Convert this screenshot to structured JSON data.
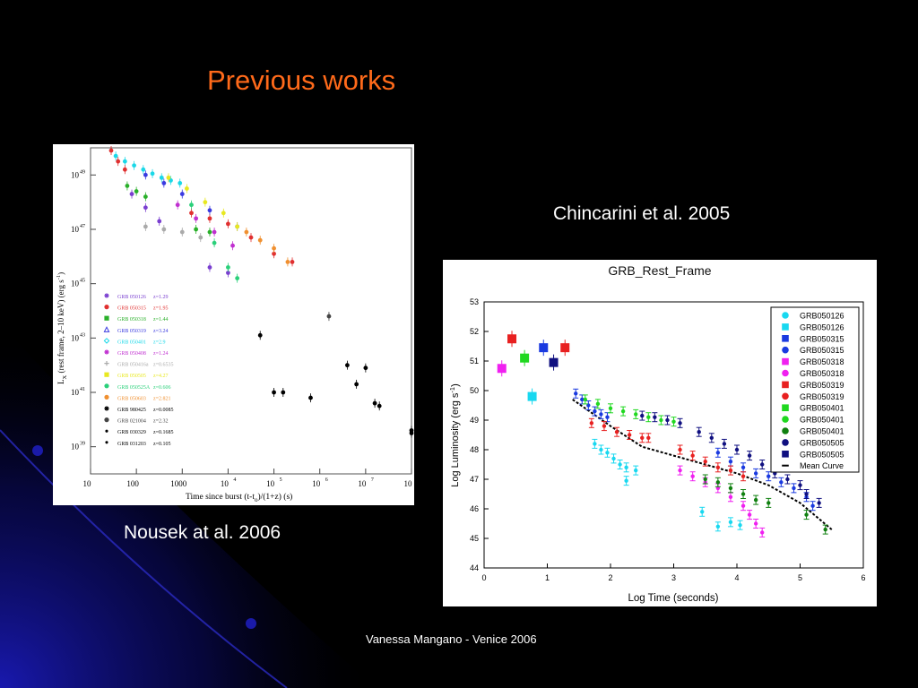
{
  "slide": {
    "title": "Previous works",
    "caption_right": "Chincarini et al. 2005",
    "caption_left": "Nousek at al. 2006",
    "footer": "Vanessa Mangano - Venice 2006"
  },
  "colors": {
    "background": "#000000",
    "title": "#ff6a1a",
    "swoosh": "#1a1aa8"
  },
  "chart_data": [
    {
      "type": "scatter",
      "scale": "log-log",
      "xlabel_parts": {
        "main": "Time since burst (t-t",
        "sub": "o",
        "rest": ")/(1+z) (s)"
      },
      "ylabel_parts": {
        "main": "L",
        "sub": "X",
        "rest": " (rest frame, 2–10 keV) (erg s",
        "sup": "-1",
        "end": ")"
      },
      "x_ticks": [
        "10",
        "100",
        "1000",
        "10",
        "10",
        "10",
        "10",
        "10"
      ],
      "x_tick_exponents": [
        "",
        "",
        "",
        "4",
        "5",
        "6",
        "7",
        "8"
      ],
      "x_log_range": [
        1,
        8
      ],
      "y_ticks": [
        "10",
        "10",
        "10",
        "10",
        "10",
        "10"
      ],
      "y_tick_exponents": [
        "39",
        "41",
        "43",
        "45",
        "47",
        "49"
      ],
      "y_log_range": [
        38,
        50
      ],
      "legend": [
        {
          "label": "GRB 050126",
          "z": "z=1.29",
          "color": "#7a3fd0",
          "marker": "star"
        },
        {
          "label": "GRB 050315",
          "z": "z=1.95",
          "color": "#e03030",
          "marker": "circle"
        },
        {
          "label": "GRB 050318",
          "z": "z=1.44",
          "color": "#2ab02a",
          "marker": "square"
        },
        {
          "label": "GRB 050319",
          "z": "z=3.24",
          "color": "#3a3ae0",
          "marker": "triangle"
        },
        {
          "label": "GRB 050401",
          "z": "z=2.9",
          "color": "#1ad8e8",
          "marker": "diamond"
        },
        {
          "label": "GRB 050408",
          "z": "z=1.24",
          "color": "#c030d0",
          "marker": "star"
        },
        {
          "label": "GRB 050416a",
          "z": "z=0.6535",
          "color": "#aaaaaa",
          "marker": "plus"
        },
        {
          "label": "GRB 050505",
          "z": "z=4.27",
          "color": "#e8e820",
          "marker": "square"
        },
        {
          "label": "GRB 050525A",
          "z": "z=0.606",
          "color": "#2ad07a",
          "marker": "circle"
        },
        {
          "label": "GRB 050603",
          "z": "z=2.821",
          "color": "#f09030",
          "marker": "circle"
        },
        {
          "label": "GRB 980425",
          "z": "z=0.0085",
          "color": "#000000",
          "marker": "star"
        },
        {
          "label": "GRB 021004",
          "z": "z=2.32",
          "color": "#444444",
          "marker": "circle"
        },
        {
          "label": "GRB 030329",
          "z": "z=0.1685",
          "color": "#000000",
          "marker": "dot"
        },
        {
          "label": "GRB 031203",
          "z": "z=0.105",
          "color": "#000000",
          "marker": "dot"
        }
      ],
      "series": [
        {
          "name": "GRB 050401",
          "color": "#1ad8e8",
          "points": [
            [
              1.55,
              49.7
            ],
            [
              1.75,
              49.5
            ],
            [
              1.95,
              49.35
            ],
            [
              2.15,
              49.2
            ],
            [
              2.35,
              49.05
            ],
            [
              2.55,
              48.9
            ],
            [
              2.75,
              48.8
            ],
            [
              2.95,
              48.7
            ]
          ]
        },
        {
          "name": "GRB 050315",
          "color": "#e03030",
          "points": [
            [
              1.45,
              49.9
            ],
            [
              1.6,
              49.5
            ],
            [
              1.75,
              49.2
            ],
            [
              3.2,
              47.6
            ],
            [
              3.6,
              47.4
            ],
            [
              4.0,
              47.2
            ],
            [
              4.5,
              46.7
            ],
            [
              5.0,
              46.1
            ],
            [
              5.4,
              45.8
            ]
          ]
        },
        {
          "name": "GRB 050318",
          "color": "#2ab02a",
          "points": [
            [
              1.8,
              48.6
            ],
            [
              2.0,
              48.4
            ],
            [
              2.2,
              48.2
            ],
            [
              3.3,
              47.0
            ],
            [
              3.6,
              46.9
            ]
          ]
        },
        {
          "name": "GRB 050126",
          "color": "#7a3fd0",
          "points": [
            [
              1.9,
              48.3
            ],
            [
              2.2,
              47.8
            ],
            [
              2.5,
              47.3
            ],
            [
              3.6,
              45.6
            ],
            [
              4.0,
              45.4
            ]
          ]
        },
        {
          "name": "GRB 050319",
          "color": "#3a3ae0",
          "points": [
            [
              2.2,
              49.0
            ],
            [
              2.6,
              48.7
            ],
            [
              3.0,
              48.3
            ],
            [
              3.6,
              47.7
            ],
            [
              4.2,
              47.1
            ]
          ]
        },
        {
          "name": "GRB 050505",
          "color": "#e8e820",
          "points": [
            [
              2.7,
              48.9
            ],
            [
              3.1,
              48.5
            ],
            [
              3.5,
              48.0
            ],
            [
              3.9,
              47.6
            ],
            [
              4.2,
              47.1
            ]
          ]
        },
        {
          "name": "GRB 050603",
          "color": "#f09030",
          "points": [
            [
              4.4,
              46.9
            ],
            [
              4.7,
              46.6
            ],
            [
              5.0,
              46.3
            ],
            [
              5.3,
              45.8
            ]
          ]
        },
        {
          "name": "GRB 050408",
          "color": "#c030d0",
          "points": [
            [
              2.9,
              47.9
            ],
            [
              3.3,
              47.4
            ],
            [
              3.7,
              46.9
            ],
            [
              4.1,
              46.4
            ]
          ]
        },
        {
          "name": "GRB 050416a",
          "color": "#aaaaaa",
          "points": [
            [
              2.2,
              47.1
            ],
            [
              2.6,
              47.0
            ],
            [
              3.0,
              46.9
            ],
            [
              3.4,
              46.7
            ]
          ]
        },
        {
          "name": "GRB 050525A",
          "color": "#2ad07a",
          "points": [
            [
              3.2,
              47.9
            ],
            [
              3.7,
              46.5
            ],
            [
              4.0,
              45.6
            ],
            [
              4.2,
              45.2
            ]
          ]
        },
        {
          "name": "GRB 980425",
          "color": "#000000",
          "points": [
            [
              4.7,
              43.1
            ],
            [
              5.0,
              41.0
            ],
            [
              5.2,
              41.0
            ],
            [
              5.8,
              40.8
            ],
            [
              7.3,
              40.5
            ],
            [
              8.0,
              39.6
            ]
          ]
        },
        {
          "name": "GRB 021004",
          "color": "#444444",
          "points": [
            [
              6.2,
              43.8
            ]
          ]
        },
        {
          "name": "GRB 030329",
          "color": "#000000",
          "points": [
            [
              6.6,
              42.0
            ],
            [
              6.8,
              41.3
            ],
            [
              7.0,
              41.9
            ],
            [
              7.2,
              40.6
            ],
            [
              8.0,
              39.5
            ]
          ]
        }
      ]
    },
    {
      "type": "scatter",
      "title": "GRB_Rest_Frame",
      "xlabel": "Log Time (seconds)",
      "ylabel_parts": {
        "main": "Log Luminosity (erg s",
        "sup": "-1",
        "end": ")"
      },
      "xlim": [
        0,
        6
      ],
      "ylim": [
        44,
        53
      ],
      "x_ticks": [
        "0",
        "1",
        "2",
        "3",
        "4",
        "5",
        "6"
      ],
      "y_ticks": [
        "44",
        "45",
        "46",
        "47",
        "48",
        "49",
        "50",
        "51",
        "52",
        "53"
      ],
      "legend": [
        {
          "label": "GRB050126",
          "color": "#19d8f0",
          "marker": "circle"
        },
        {
          "label": "GRB050126",
          "color": "#19d8f0",
          "marker": "square"
        },
        {
          "label": "GRB050315",
          "color": "#1a3ae0",
          "marker": "square"
        },
        {
          "label": "GRB050315",
          "color": "#1a3ae0",
          "marker": "circle"
        },
        {
          "label": "GRB050318",
          "color": "#f020f0",
          "marker": "square"
        },
        {
          "label": "GRB050318",
          "color": "#f020f0",
          "marker": "circle"
        },
        {
          "label": "GRB050319",
          "color": "#e82020",
          "marker": "square"
        },
        {
          "label": "GRB050319",
          "color": "#e82020",
          "marker": "circle"
        },
        {
          "label": "GRB050401",
          "color": "#20d820",
          "marker": "square"
        },
        {
          "label": "GRB050401",
          "color": "#20d820",
          "marker": "circle"
        },
        {
          "label": "GRB050401",
          "color": "#108010",
          "marker": "circle"
        },
        {
          "label": "GRB050505",
          "color": "#101080",
          "marker": "circle"
        },
        {
          "label": "GRB050505",
          "color": "#101080",
          "marker": "square"
        },
        {
          "label": "Mean Curve",
          "color": "#000000",
          "marker": "dash"
        }
      ],
      "squares": [
        {
          "name": "GRB050318",
          "color": "#f020f0",
          "x": 0.28,
          "y": 50.75
        },
        {
          "name": "GRB050319",
          "color": "#e82020",
          "x": 0.44,
          "y": 51.75
        },
        {
          "name": "GRB050401",
          "color": "#20d820",
          "x": 0.64,
          "y": 51.1
        },
        {
          "name": "GRB050126",
          "color": "#19d8f0",
          "x": 0.76,
          "y": 49.8
        },
        {
          "name": "GRB050315",
          "color": "#1a3ae0",
          "x": 0.94,
          "y": 51.45
        },
        {
          "name": "GRB050505",
          "color": "#101080",
          "x": 1.1,
          "y": 50.95
        },
        {
          "name": "GRB050319",
          "color": "#e82020",
          "x": 1.28,
          "y": 51.45
        }
      ],
      "series": [
        {
          "name": "GRB050315",
          "color": "#1a3ae0",
          "points": [
            [
              1.45,
              49.9
            ],
            [
              1.55,
              49.7
            ],
            [
              1.65,
              49.5
            ],
            [
              1.75,
              49.3
            ],
            [
              1.85,
              49.2
            ],
            [
              1.95,
              49.1
            ],
            [
              3.7,
              47.9
            ],
            [
              3.9,
              47.6
            ],
            [
              4.1,
              47.4
            ],
            [
              4.3,
              47.2
            ],
            [
              4.5,
              47.1
            ],
            [
              4.7,
              46.9
            ],
            [
              4.9,
              46.7
            ],
            [
              5.1,
              46.4
            ],
            [
              5.2,
              46.1
            ]
          ]
        },
        {
          "name": "GRB050401",
          "color": "#20d820",
          "points": [
            [
              1.6,
              49.7
            ],
            [
              1.8,
              49.55
            ],
            [
              2.0,
              49.4
            ],
            [
              2.2,
              49.3
            ],
            [
              2.4,
              49.2
            ],
            [
              2.6,
              49.1
            ],
            [
              2.8,
              49.0
            ],
            [
              3.0,
              48.95
            ]
          ]
        },
        {
          "name": "GRB050505",
          "color": "#101080",
          "points": [
            [
              2.5,
              49.15
            ],
            [
              2.7,
              49.1
            ],
            [
              2.9,
              49.0
            ],
            [
              3.1,
              48.9
            ],
            [
              3.4,
              48.6
            ],
            [
              3.6,
              48.4
            ],
            [
              3.8,
              48.2
            ],
            [
              4.0,
              48.0
            ],
            [
              4.2,
              47.8
            ],
            [
              4.4,
              47.5
            ],
            [
              4.6,
              47.2
            ],
            [
              4.8,
              47.0
            ],
            [
              5.0,
              46.8
            ],
            [
              5.1,
              46.5
            ],
            [
              5.3,
              46.2
            ]
          ]
        },
        {
          "name": "GRB050319",
          "color": "#e82020",
          "points": [
            [
              1.7,
              48.9
            ],
            [
              1.9,
              48.8
            ],
            [
              2.1,
              48.6
            ],
            [
              2.3,
              48.5
            ],
            [
              2.5,
              48.4
            ],
            [
              2.6,
              48.4
            ],
            [
              3.1,
              48.0
            ],
            [
              3.3,
              47.8
            ],
            [
              3.5,
              47.6
            ],
            [
              3.7,
              47.4
            ],
            [
              3.9,
              47.3
            ],
            [
              4.1,
              47.1
            ]
          ]
        },
        {
          "name": "GRB050126",
          "color": "#19d8f0",
          "points": [
            [
              1.75,
              48.2
            ],
            [
              1.85,
              48.0
            ],
            [
              1.95,
              47.9
            ],
            [
              2.05,
              47.7
            ],
            [
              2.15,
              47.5
            ],
            [
              2.25,
              47.4
            ],
            [
              2.4,
              47.3
            ],
            [
              2.25,
              46.95
            ],
            [
              3.45,
              45.9
            ],
            [
              3.7,
              45.4
            ],
            [
              3.9,
              45.55
            ],
            [
              4.05,
              45.45
            ]
          ]
        },
        {
          "name": "GRB050318",
          "color": "#f020f0",
          "points": [
            [
              3.1,
              47.3
            ],
            [
              3.3,
              47.1
            ],
            [
              3.5,
              46.9
            ],
            [
              3.7,
              46.7
            ],
            [
              3.9,
              46.4
            ],
            [
              4.1,
              46.1
            ],
            [
              4.2,
              45.8
            ],
            [
              4.3,
              45.5
            ],
            [
              4.4,
              45.2
            ]
          ]
        },
        {
          "name": "GRB050401",
          "color": "#108010",
          "points": [
            [
              3.5,
              47.0
            ],
            [
              3.7,
              46.9
            ],
            [
              3.9,
              46.7
            ],
            [
              4.1,
              46.5
            ],
            [
              4.3,
              46.3
            ],
            [
              4.5,
              46.2
            ],
            [
              5.1,
              45.8
            ],
            [
              5.4,
              45.3
            ]
          ]
        }
      ],
      "mean_curve": [
        [
          1.4,
          49.7
        ],
        [
          2.0,
          48.8
        ],
        [
          2.5,
          48.1
        ],
        [
          3.0,
          47.8
        ],
        [
          3.5,
          47.5
        ],
        [
          4.0,
          47.2
        ],
        [
          4.5,
          46.8
        ],
        [
          5.0,
          46.2
        ],
        [
          5.5,
          45.3
        ]
      ]
    }
  ]
}
